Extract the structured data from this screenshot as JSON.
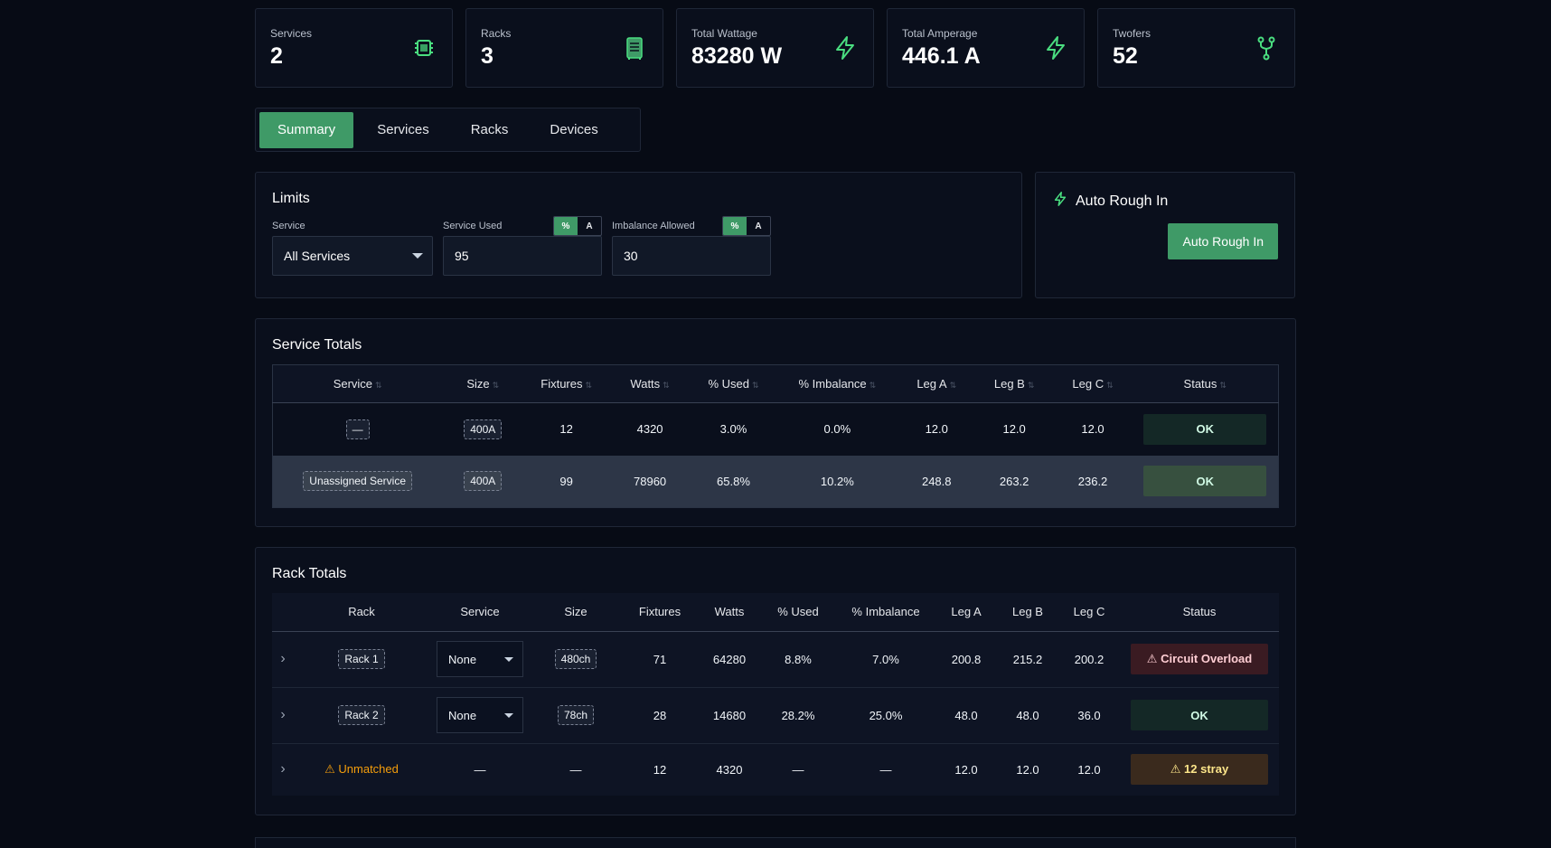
{
  "stats": [
    {
      "label": "Services",
      "value": "2",
      "icon": "chip-icon"
    },
    {
      "label": "Racks",
      "value": "3",
      "icon": "rack-icon"
    },
    {
      "label": "Total Wattage",
      "value": "83280 W",
      "icon": "bolt-icon"
    },
    {
      "label": "Total Amperage",
      "value": "446.1 A",
      "icon": "bolt-icon"
    },
    {
      "label": "Twofers",
      "value": "52",
      "icon": "split-icon"
    }
  ],
  "tabs": [
    "Summary",
    "Services",
    "Racks",
    "Devices"
  ],
  "limits": {
    "title": "Limits",
    "service_label": "Service",
    "service_value": "All Services",
    "used_label": "Service Used",
    "used_value": "95",
    "imbalance_label": "Imbalance Allowed",
    "imbalance_value": "30",
    "seg_pct": "%",
    "seg_a": "A"
  },
  "auto": {
    "title": "Auto Rough In",
    "button": "Auto Rough In"
  },
  "service_totals": {
    "title": "Service Totals",
    "headers": [
      "Service",
      "Size",
      "Fixtures",
      "Watts",
      "% Used",
      "% Imbalance",
      "Leg A",
      "Leg B",
      "Leg C",
      "Status"
    ],
    "rows": [
      {
        "service": "—",
        "size": "400A",
        "fixtures": "12",
        "watts": "4320",
        "used": "3.0%",
        "imbalance": "0.0%",
        "leg_a": "12.0",
        "leg_b": "12.0",
        "leg_c": "12.0",
        "status": "OK"
      },
      {
        "service": "Unassigned Service",
        "size": "400A",
        "fixtures": "99",
        "watts": "78960",
        "used": "65.8%",
        "imbalance": "10.2%",
        "leg_a": "248.8",
        "leg_b": "263.2",
        "leg_c": "236.2",
        "status": "OK"
      }
    ]
  },
  "rack_totals": {
    "title": "Rack Totals",
    "headers": [
      "Rack",
      "Service",
      "Size",
      "Fixtures",
      "Watts",
      "% Used",
      "% Imbalance",
      "Leg A",
      "Leg B",
      "Leg C",
      "Status"
    ],
    "rows": [
      {
        "rack": "Rack 1",
        "service": "None",
        "size": "480ch",
        "fixtures": "71",
        "watts": "64280",
        "used": "8.8%",
        "imbalance": "7.0%",
        "leg_a": "200.8",
        "leg_b": "215.2",
        "leg_c": "200.2",
        "status": "⚠ Circuit Overload"
      },
      {
        "rack": "Rack 2",
        "service": "None",
        "size": "78ch",
        "fixtures": "28",
        "watts": "14680",
        "used": "28.2%",
        "imbalance": "25.0%",
        "leg_a": "48.0",
        "leg_b": "48.0",
        "leg_c": "36.0",
        "status": "OK"
      },
      {
        "rack": "⚠ Unmatched",
        "service": "—",
        "size": "—",
        "fixtures": "12",
        "watts": "4320",
        "used": "—",
        "imbalance": "—",
        "leg_a": "12.0",
        "leg_b": "12.0",
        "leg_c": "12.0",
        "status": "⚠ 12 stray"
      }
    ]
  },
  "colors": {
    "accent": "#3f9a67",
    "background": "#070b15",
    "panel": "#0a0f1c"
  }
}
